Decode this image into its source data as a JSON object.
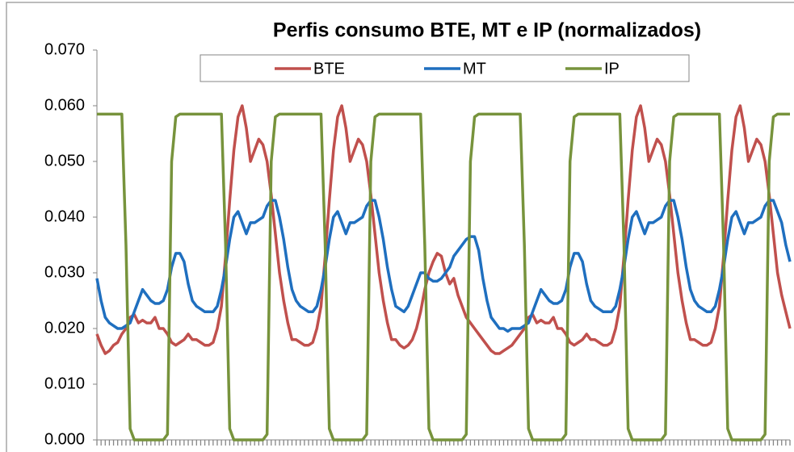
{
  "chart_data": {
    "type": "line",
    "title": "Perfis consumo BTE, MT e IP (normalizados)",
    "legend": "top",
    "ylim": [
      0,
      0.07
    ],
    "yticks": [
      {
        "value": 0,
        "label": "0.000"
      },
      {
        "value": 0.01,
        "label": "0.010"
      },
      {
        "value": 0.02,
        "label": "0.020"
      },
      {
        "value": 0.03,
        "label": "0.030"
      },
      {
        "value": 0.04,
        "label": "0.040"
      },
      {
        "value": 0.05,
        "label": "0.050"
      },
      {
        "value": 0.06,
        "label": "0.060"
      },
      {
        "value": 0.07,
        "label": "0.070"
      }
    ],
    "categories": [
      null,
      null,
      null,
      null,
      null,
      null,
      null,
      null,
      null,
      null,
      null,
      null,
      null,
      null,
      null,
      null,
      null,
      null,
      null,
      null,
      null,
      null,
      null,
      null,
      null,
      null,
      null,
      null,
      null,
      null,
      null,
      null,
      null,
      null,
      null,
      null,
      null,
      null,
      null,
      null,
      null,
      null,
      null,
      null,
      null,
      null,
      null,
      null,
      null,
      null,
      null,
      null,
      null,
      null,
      null,
      null,
      null,
      null,
      null,
      null,
      null,
      null,
      null,
      null,
      null,
      null,
      null,
      null,
      null,
      null,
      null,
      null,
      null,
      null,
      null,
      null,
      null,
      null,
      null,
      null,
      null,
      null,
      null,
      null,
      null,
      null,
      null,
      null,
      null,
      null,
      null,
      null,
      null,
      null,
      null,
      null,
      null,
      null,
      null,
      null,
      null,
      null,
      null,
      null,
      null,
      null,
      null,
      null,
      null,
      null,
      null,
      null,
      null,
      null,
      null,
      null,
      null,
      null,
      null,
      null,
      null,
      null,
      null,
      null,
      null,
      null,
      null,
      null,
      null,
      null,
      null,
      null,
      null,
      null,
      null,
      null,
      null,
      null,
      null,
      null,
      null,
      null,
      null,
      null,
      null,
      null,
      null,
      null,
      null,
      null,
      null,
      null,
      null,
      null,
      null,
      null,
      null,
      null,
      null,
      null,
      null,
      null,
      null,
      null,
      null,
      null,
      null,
      null
    ],
    "series": [
      {
        "name": "BTE",
        "color": "#c0504d",
        "values": [
          0.019,
          0.017,
          0.0155,
          0.016,
          0.017,
          0.0175,
          0.019,
          0.02,
          0.022,
          0.0225,
          0.021,
          0.0215,
          0.021,
          0.021,
          0.022,
          0.02,
          0.02,
          0.019,
          0.0175,
          0.017,
          0.0175,
          0.018,
          0.019,
          0.018,
          0.018,
          0.0175,
          0.017,
          0.017,
          0.0175,
          0.02,
          0.024,
          0.033,
          0.043,
          0.052,
          0.058,
          0.06,
          0.056,
          0.05,
          0.052,
          0.054,
          0.053,
          0.05,
          0.044,
          0.037,
          0.03,
          0.025,
          0.021,
          0.018,
          0.018,
          0.0175,
          0.017,
          0.017,
          0.0175,
          0.02,
          0.024,
          0.033,
          0.043,
          0.052,
          0.058,
          0.06,
          0.056,
          0.05,
          0.052,
          0.054,
          0.053,
          0.05,
          0.044,
          0.037,
          0.03,
          0.025,
          0.021,
          0.018,
          0.018,
          0.017,
          0.0165,
          0.017,
          0.018,
          0.02,
          0.023,
          0.027,
          0.03,
          0.032,
          0.0335,
          0.033,
          0.03,
          0.028,
          0.029,
          0.026,
          0.024,
          0.022,
          0.021,
          0.02,
          0.019,
          0.018,
          0.017,
          0.016,
          0.0155,
          0.0155,
          0.016,
          0.0165,
          0.017,
          0.018,
          0.019,
          0.02,
          0.022,
          0.0225,
          0.021,
          0.0215,
          0.021,
          0.021,
          0.022,
          0.02,
          0.02,
          0.019,
          0.0175,
          0.017,
          0.0175,
          0.018,
          0.019,
          0.018,
          0.018,
          0.0175,
          0.017,
          0.017,
          0.0175,
          0.02,
          0.024,
          0.033,
          0.043,
          0.052,
          0.058,
          0.06,
          0.056,
          0.05,
          0.052,
          0.054,
          0.053,
          0.05,
          0.044,
          0.037,
          0.03,
          0.025,
          0.021,
          0.018,
          0.018,
          0.0175,
          0.017,
          0.017,
          0.0175,
          0.02,
          0.024,
          0.033,
          0.043,
          0.052,
          0.058,
          0.06,
          0.056,
          0.05,
          0.052,
          0.054,
          0.053,
          0.05,
          0.044,
          0.037,
          0.03,
          0.026,
          0.023,
          0.02
        ]
      },
      {
        "name": "MT",
        "color": "#1f6fbf",
        "values": [
          0.029,
          0.025,
          0.022,
          0.021,
          0.0205,
          0.02,
          0.02,
          0.0205,
          0.021,
          0.023,
          0.025,
          0.027,
          0.026,
          0.025,
          0.0245,
          0.0245,
          0.025,
          0.027,
          0.031,
          0.0335,
          0.0335,
          0.032,
          0.028,
          0.025,
          0.024,
          0.0235,
          0.023,
          0.023,
          0.023,
          0.024,
          0.027,
          0.031,
          0.036,
          0.04,
          0.041,
          0.039,
          0.037,
          0.039,
          0.039,
          0.0395,
          0.04,
          0.042,
          0.043,
          0.043,
          0.04,
          0.036,
          0.031,
          0.027,
          0.025,
          0.024,
          0.0235,
          0.023,
          0.023,
          0.024,
          0.027,
          0.031,
          0.036,
          0.04,
          0.041,
          0.039,
          0.037,
          0.039,
          0.039,
          0.0395,
          0.04,
          0.042,
          0.043,
          0.043,
          0.04,
          0.036,
          0.031,
          0.027,
          0.024,
          0.0235,
          0.023,
          0.024,
          0.026,
          0.028,
          0.03,
          0.03,
          0.029,
          0.0285,
          0.0285,
          0.029,
          0.03,
          0.031,
          0.033,
          0.034,
          0.035,
          0.036,
          0.0365,
          0.0365,
          0.034,
          0.029,
          0.025,
          0.022,
          0.021,
          0.02,
          0.02,
          0.0195,
          0.02,
          0.02,
          0.02,
          0.0205,
          0.021,
          0.023,
          0.025,
          0.027,
          0.026,
          0.025,
          0.0245,
          0.0245,
          0.025,
          0.027,
          0.031,
          0.0335,
          0.0335,
          0.032,
          0.028,
          0.025,
          0.024,
          0.0235,
          0.023,
          0.023,
          0.023,
          0.024,
          0.027,
          0.031,
          0.036,
          0.04,
          0.041,
          0.039,
          0.037,
          0.039,
          0.039,
          0.0395,
          0.04,
          0.042,
          0.043,
          0.043,
          0.04,
          0.036,
          0.031,
          0.027,
          0.025,
          0.024,
          0.0235,
          0.023,
          0.023,
          0.024,
          0.027,
          0.031,
          0.036,
          0.04,
          0.041,
          0.039,
          0.037,
          0.039,
          0.039,
          0.0395,
          0.04,
          0.042,
          0.043,
          0.043,
          0.041,
          0.039,
          0.035,
          0.032
        ]
      },
      {
        "name": "IP",
        "color": "#77933c",
        "values": [
          0.0585,
          0.0585,
          0.0585,
          0.0585,
          0.0585,
          0.0585,
          0.0585,
          0.035,
          0.002,
          0,
          0,
          0,
          0,
          0,
          0,
          0,
          0,
          0.001,
          0.05,
          0.058,
          0.0585,
          0.0585,
          0.0585,
          0.0585,
          0.0585,
          0.0585,
          0.0585,
          0.0585,
          0.0585,
          0.0585,
          0.0585,
          0.035,
          0.002,
          0,
          0,
          0,
          0,
          0,
          0,
          0,
          0,
          0.001,
          0.05,
          0.058,
          0.0585,
          0.0585,
          0.0585,
          0.0585,
          0.0585,
          0.0585,
          0.0585,
          0.0585,
          0.0585,
          0.0585,
          0.0585,
          0.035,
          0.002,
          0,
          0,
          0,
          0,
          0,
          0,
          0,
          0,
          0.001,
          0.05,
          0.058,
          0.0585,
          0.0585,
          0.0585,
          0.0585,
          0.0585,
          0.0585,
          0.0585,
          0.0585,
          0.0585,
          0.0585,
          0.0585,
          0.035,
          0.002,
          0,
          0,
          0,
          0,
          0,
          0,
          0,
          0,
          0.001,
          0.05,
          0.058,
          0.0585,
          0.0585,
          0.0585,
          0.0585,
          0.0585,
          0.0585,
          0.0585,
          0.0585,
          0.0585,
          0.0585,
          0.0585,
          0.035,
          0.002,
          0,
          0,
          0,
          0,
          0,
          0,
          0,
          0,
          0.001,
          0.05,
          0.058,
          0.0585,
          0.0585,
          0.0585,
          0.0585,
          0.0585,
          0.0585,
          0.0585,
          0.0585,
          0.0585,
          0.0585,
          0.0585,
          0.035,
          0.002,
          0,
          0,
          0,
          0,
          0,
          0,
          0,
          0,
          0.001,
          0.05,
          0.058,
          0.0585,
          0.0585,
          0.0585,
          0.0585,
          0.0585,
          0.0585,
          0.0585,
          0.0585,
          0.0585,
          0.0585,
          0.0585,
          0.035,
          0.002,
          0,
          0,
          0,
          0,
          0,
          0,
          0,
          0,
          0.001,
          0.05,
          0.058,
          0.0585,
          0.0585,
          0.0585,
          0.0585
        ]
      }
    ]
  }
}
